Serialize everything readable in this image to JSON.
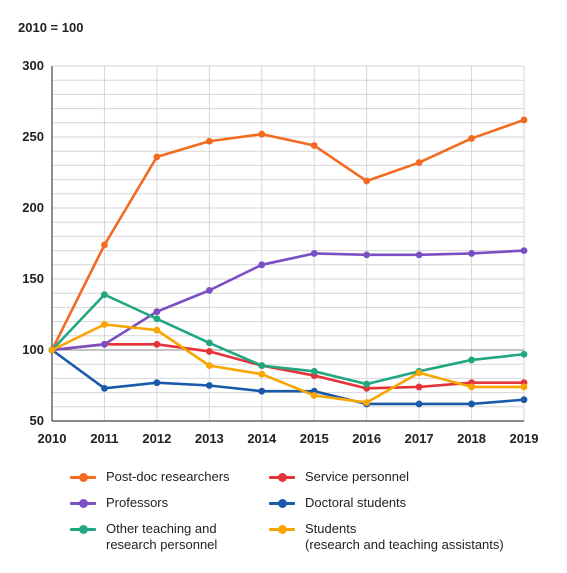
{
  "note": "2010 = 100",
  "chart_data": {
    "type": "line",
    "xlabel": "",
    "ylabel": "",
    "x": [
      2010,
      2011,
      2012,
      2013,
      2014,
      2015,
      2016,
      2017,
      2018,
      2019
    ],
    "x_tick_labels": [
      "2010",
      "2011",
      "2012",
      "2013",
      "2014",
      "2015",
      "2016",
      "2017",
      "2018",
      "2019"
    ],
    "ylim": [
      50,
      300
    ],
    "y_ticks": [
      50,
      100,
      150,
      200,
      250,
      300
    ],
    "y_tick_labels": [
      "50",
      "100",
      "150",
      "200",
      "250",
      "300"
    ],
    "grid": true,
    "reference_line": 100,
    "legend_position": "bottom",
    "series": [
      {
        "name": "Post-doc researchers",
        "color": "#f26b21",
        "values": [
          100,
          174,
          236,
          247,
          252,
          244,
          219,
          232,
          249,
          262
        ]
      },
      {
        "name": "Service personnel",
        "color": "#e5333a",
        "values": [
          100,
          104,
          104,
          99,
          89,
          82,
          73,
          74,
          77,
          77
        ]
      },
      {
        "name": "Professors",
        "color": "#7a4fc3",
        "values": [
          100,
          104,
          127,
          142,
          160,
          168,
          167,
          167,
          168,
          170
        ]
      },
      {
        "name": "Doctoral students",
        "color": "#1a5aab",
        "values": [
          100,
          73,
          77,
          75,
          71,
          71,
          62,
          62,
          62,
          65
        ]
      },
      {
        "name": "Other teaching and\nresearch personnel",
        "color": "#21a782",
        "values": [
          100,
          139,
          122,
          105,
          89,
          85,
          76,
          85,
          93,
          97
        ]
      },
      {
        "name": "Students\n(research and teaching assistants)",
        "color": "#f7a600",
        "values": [
          100,
          118,
          114,
          89,
          83,
          68,
          63,
          84,
          74,
          74
        ]
      }
    ]
  }
}
